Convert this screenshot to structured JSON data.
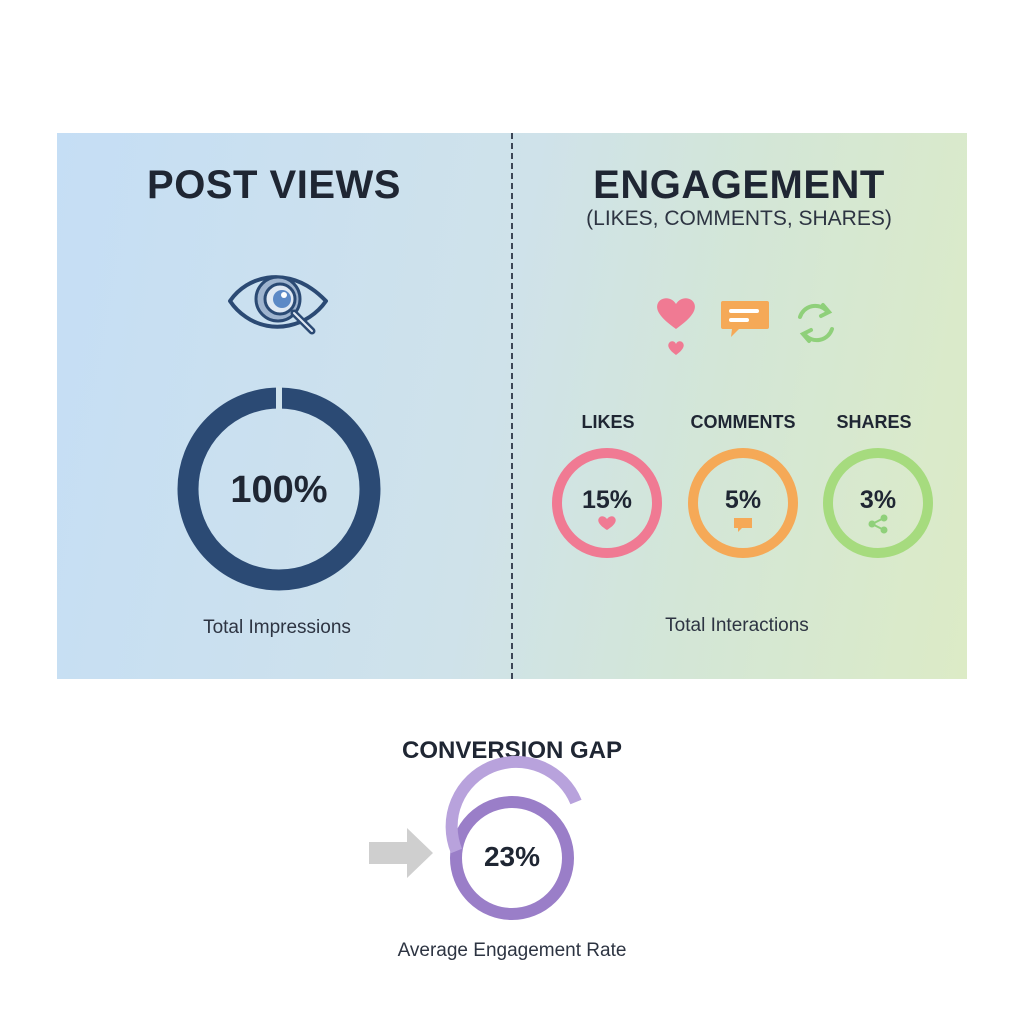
{
  "colors": {
    "views_ring": "#2b4a74",
    "likes": "#f07a93",
    "comments": "#f5a957",
    "shares": "#a6db7e",
    "rate": "#9a7ec8"
  },
  "icons": {
    "views": "eye-magnifier-icon",
    "likes": "heart-icon",
    "comments": "speech-bubble-icon",
    "shares": "share-arrows-icon",
    "arrow": "arrow-right-icon"
  },
  "views": {
    "title": "POST VIEWS",
    "caption": "Total Impressions"
  },
  "engagement": {
    "title": "ENGAGEMENT",
    "subtitle": "(LIKES, COMMENTS, SHARES)",
    "caption": "Total Interactions"
  },
  "conversion": {
    "title": "CONVERSION GAP",
    "caption": "Average Engagement Rate"
  },
  "chart_data": [
    {
      "type": "pie",
      "name": "Total Impressions",
      "value": 100,
      "label": "100%"
    },
    {
      "type": "pie",
      "series": [
        {
          "name": "LIKES",
          "value": 15,
          "label": "15%"
        },
        {
          "name": "COMMENTS",
          "value": 5,
          "label": "5%"
        },
        {
          "name": "SHARES",
          "value": 3,
          "label": "3%"
        }
      ]
    },
    {
      "type": "pie",
      "name": "Average Engagement Rate",
      "value": 23,
      "label": "23%"
    }
  ]
}
